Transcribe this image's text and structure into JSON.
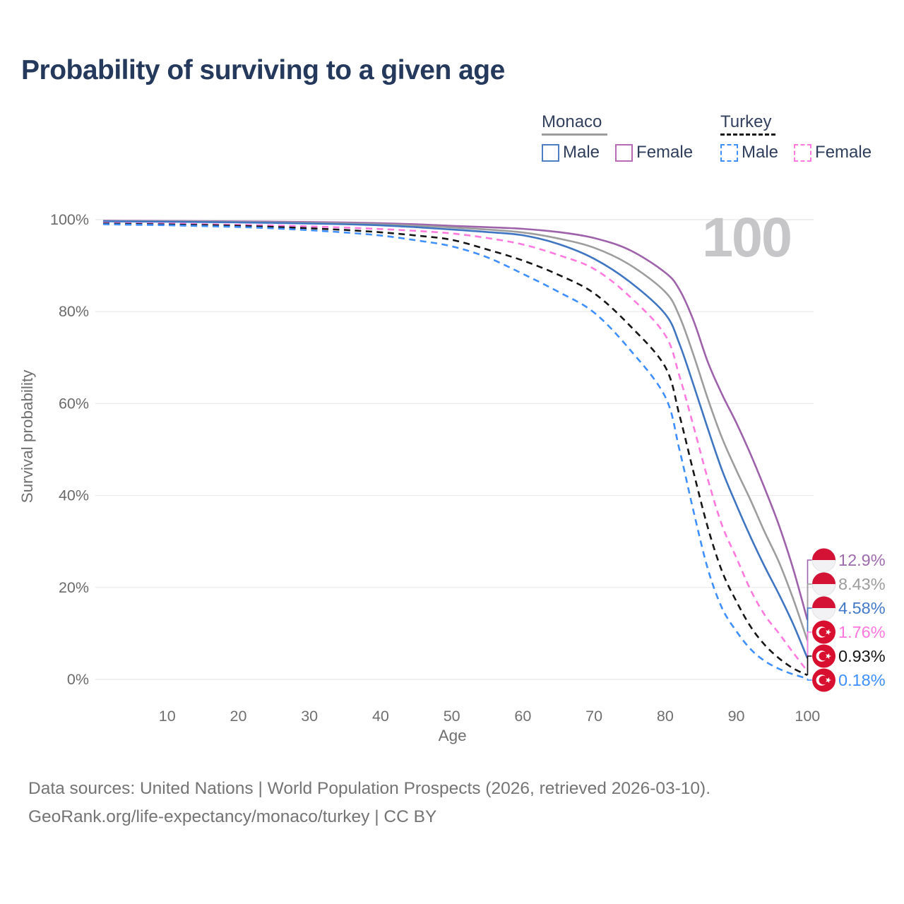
{
  "header": {
    "title": "Probability of surviving to a given age"
  },
  "legend": {
    "groups": [
      {
        "label": "Monaco",
        "line_color": "#9d9d9d",
        "line_dash": false,
        "items": [
          {
            "label": "Male",
            "color": "#4d7ec2",
            "dash": false
          },
          {
            "label": "Female",
            "color": "#b76bb5",
            "dash": false
          }
        ]
      },
      {
        "label": "Turkey",
        "line_color": "#161616",
        "line_dash": true,
        "items": [
          {
            "label": "Male",
            "color": "#3f8fff",
            "dash": true
          },
          {
            "label": "Female",
            "color": "#ff7ae0",
            "dash": true
          }
        ]
      }
    ]
  },
  "chart_data": {
    "type": "line",
    "title": "Probability of surviving to a given age",
    "xlabel": "Age",
    "ylabel": "Survival probability",
    "xlim": [
      0,
      100
    ],
    "ylim": [
      0,
      100
    ],
    "grid": "horizontal-only",
    "legend_position": "top-right",
    "age_watermark": "100",
    "x_ticks": [
      10,
      20,
      30,
      40,
      50,
      60,
      70,
      80,
      90,
      100
    ],
    "y_ticks": [
      {
        "label": "100%",
        "value": 100
      },
      {
        "label": "80%",
        "value": 80
      },
      {
        "label": "60%",
        "value": 60
      },
      {
        "label": "40%",
        "value": 40
      },
      {
        "label": "20%",
        "value": 20
      },
      {
        "label": "0%",
        "value": 0
      }
    ],
    "ages": [
      1,
      5,
      10,
      15,
      20,
      25,
      30,
      35,
      40,
      45,
      50,
      55,
      60,
      65,
      70,
      75,
      80,
      82,
      84,
      86,
      88,
      90,
      92,
      94,
      96,
      98,
      100
    ],
    "series": [
      {
        "name": "Monaco Female",
        "color": "#9e62ab",
        "dashed": false,
        "flag": "monaco",
        "end_label": "12.9%",
        "label_color": "#9e6aae",
        "values": [
          99.75,
          99.72,
          99.7,
          99.66,
          99.62,
          99.56,
          99.48,
          99.38,
          99.22,
          99.0,
          98.65,
          98.35,
          98.0,
          97.3,
          96.0,
          93.4,
          88.5,
          84.8,
          78.0,
          69.0,
          62.0,
          55.8,
          49.0,
          41.5,
          33.5,
          24.0,
          12.9
        ]
      },
      {
        "name": "Monaco Both Sexes",
        "color": "#9d9d9d",
        "dashed": false,
        "flag": "monaco",
        "end_label": "8.43%",
        "label_color": "#9d9d9d",
        "values": [
          99.7,
          99.66,
          99.62,
          99.57,
          99.5,
          99.42,
          99.32,
          99.18,
          99.0,
          98.7,
          98.3,
          97.85,
          97.2,
          95.9,
          93.9,
          90.2,
          84.3,
          79.0,
          70.5,
          61.0,
          52.5,
          45.5,
          39.0,
          32.0,
          25.5,
          17.5,
          8.43
        ]
      },
      {
        "name": "Monaco Male",
        "color": "#3f75c1",
        "dashed": false,
        "flag": "monaco",
        "end_label": "4.58%",
        "label_color": "#4379c8",
        "values": [
          99.65,
          99.6,
          99.55,
          99.48,
          99.4,
          99.3,
          99.17,
          99.0,
          98.75,
          98.35,
          97.85,
          97.3,
          96.6,
          94.7,
          91.5,
          86.5,
          79.5,
          73.0,
          64.0,
          54.5,
          45.5,
          38.0,
          31.0,
          24.5,
          18.5,
          12.0,
          4.58
        ]
      },
      {
        "name": "Turkey Female",
        "color": "#ff7ade",
        "dashed": true,
        "flag": "turkey",
        "end_label": "1.76%",
        "label_color": "#ff77dd",
        "values": [
          99.3,
          99.2,
          99.12,
          99.0,
          98.88,
          98.72,
          98.52,
          98.28,
          97.95,
          97.55,
          97.0,
          96.0,
          94.6,
          92.3,
          89.3,
          83.3,
          74.9,
          66.0,
          55.0,
          43.5,
          33.5,
          26.5,
          19.5,
          14.0,
          10.0,
          5.8,
          1.76
        ]
      },
      {
        "name": "Turkey Both Sexes",
        "color": "#161616",
        "dashed": true,
        "flag": "turkey",
        "end_label": "0.93%",
        "label_color": "#161616",
        "values": [
          99.15,
          99.05,
          98.95,
          98.82,
          98.65,
          98.42,
          98.12,
          97.75,
          97.25,
          96.55,
          95.6,
          93.5,
          91.1,
          88.0,
          84.0,
          77.0,
          68.0,
          57.5,
          45.0,
          33.0,
          23.5,
          17.0,
          11.5,
          7.5,
          4.6,
          2.4,
          0.93
        ]
      },
      {
        "name": "Turkey Male",
        "color": "#3f8fff",
        "dashed": true,
        "flag": "turkey",
        "end_label": "0.18%",
        "label_color": "#3f8fff",
        "values": [
          99.0,
          98.9,
          98.78,
          98.6,
          98.4,
          98.1,
          97.7,
          97.2,
          96.55,
          95.5,
          94.2,
          91.8,
          88.2,
          84.3,
          79.8,
          71.8,
          61.5,
          50.0,
          36.5,
          24.0,
          15.5,
          10.5,
          6.6,
          4.0,
          2.3,
          1.1,
          0.18
        ]
      }
    ],
    "flag_colors": {
      "monaco_red": "#d31235",
      "monaco_white": "#f2f2f4",
      "turkey_red": "#d80f2f",
      "turkey_white": "#ffffff"
    }
  },
  "footer": {
    "line1": "Data sources: United Nations | World Population Prospects (2026, retrieved 2026-03-10).",
    "line2": "GeoRank.org/life-expectancy/monaco/turkey | CC BY"
  }
}
